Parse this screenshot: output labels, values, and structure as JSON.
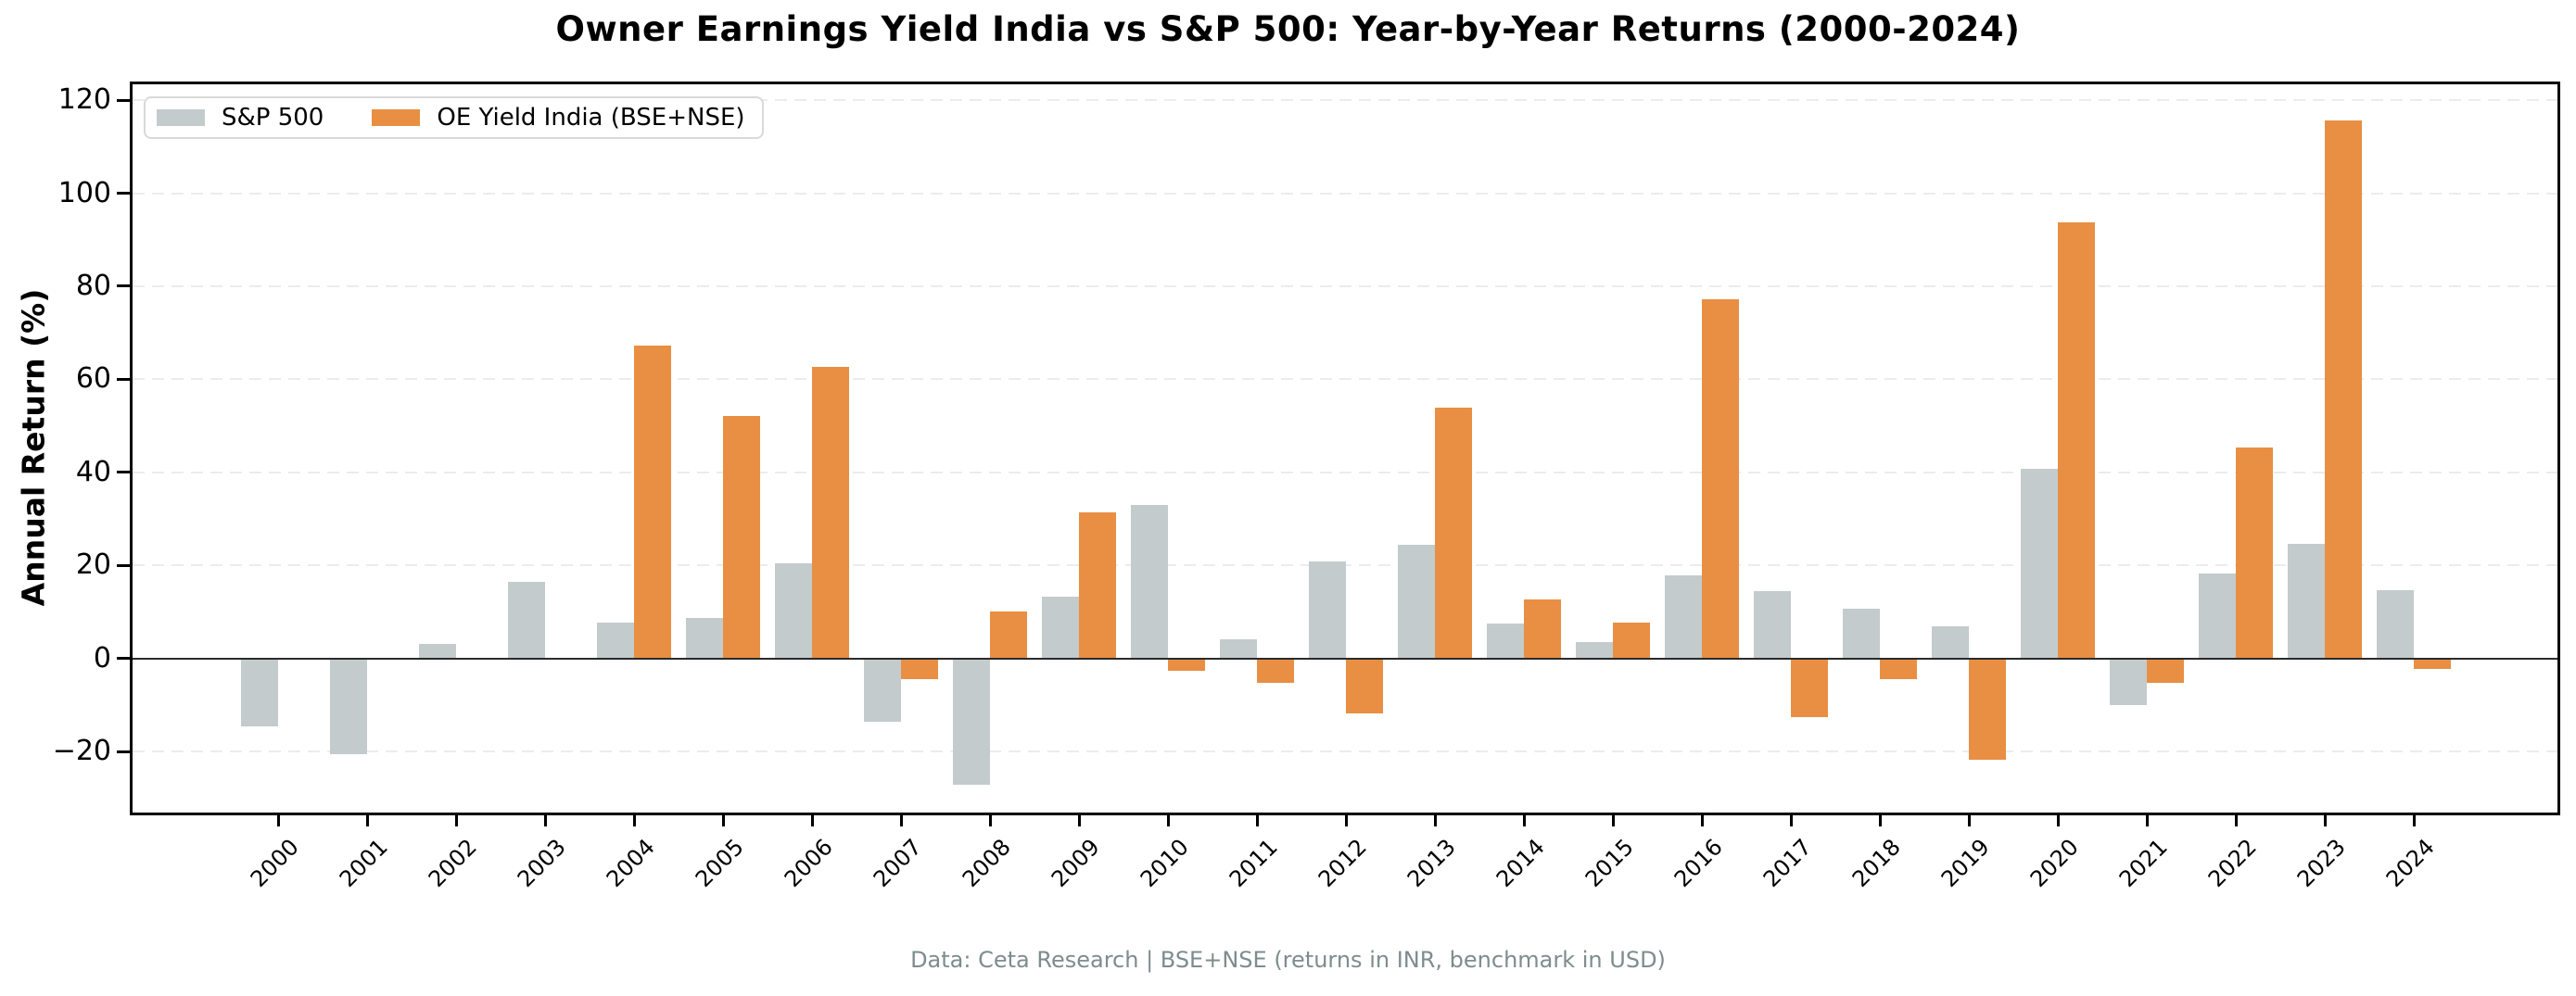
{
  "title": "Owner Earnings Yield India vs S&P 500: Year-by-Year Returns (2000-2024)",
  "y_axis_label": "Annual Return (%)",
  "footer": "Data: Ceta Research | BSE+NSE (returns in INR, benchmark in USD)",
  "colors": {
    "sp500_bar": "#c3cbcc",
    "india_bar": "#e88f43",
    "gridline": "#ececec",
    "zero_line": "#2b2b2b",
    "spine": "#000000",
    "footer_text": "#7e8c8d"
  },
  "legend": {
    "items": [
      {
        "key": "sp500",
        "label": "S&P 500",
        "color": "#c3cbcc"
      },
      {
        "key": "india",
        "label": "OE Yield India (BSE+NSE)",
        "color": "#e88f43"
      }
    ]
  },
  "chart_data": {
    "type": "bar",
    "title": "Owner Earnings Yield India vs S&P 500: Year-by-Year Returns (2000-2024)",
    "xlabel": "",
    "ylabel": "Annual Return (%)",
    "categories": [
      "2000",
      "2001",
      "2002",
      "2003",
      "2004",
      "2005",
      "2006",
      "2007",
      "2008",
      "2009",
      "2010",
      "2011",
      "2012",
      "2013",
      "2014",
      "2015",
      "2016",
      "2017",
      "2018",
      "2019",
      "2020",
      "2021",
      "2022",
      "2023",
      "2024"
    ],
    "series": [
      {
        "key": "sp500",
        "name": "S&P 500",
        "color": "#c3cbcc",
        "values": [
          -14.6,
          -20.6,
          3.1,
          16.4,
          7.8,
          8.8,
          20.5,
          -13.5,
          -27.2,
          13.3,
          33.1,
          4.1,
          20.8,
          24.5,
          7.5,
          3.6,
          17.9,
          14.5,
          10.7,
          7.0,
          40.7,
          -10.1,
          18.2,
          24.6,
          14.7
        ]
      },
      {
        "key": "india",
        "name": "OE Yield India (BSE+NSE)",
        "color": "#e88f43",
        "values": [
          null,
          null,
          null,
          null,
          67.2,
          52.2,
          62.6,
          -4.5,
          10.1,
          31.4,
          -2.7,
          -5.3,
          -11.8,
          53.9,
          12.7,
          7.8,
          77.2,
          -12.5,
          -4.5,
          -21.7,
          93.8,
          -5.2,
          45.4,
          115.7,
          -2.2
        ]
      }
    ],
    "ylim": [
      -33.1,
      123.4
    ],
    "yticks": [
      -20,
      0,
      20,
      40,
      60,
      80,
      100,
      120
    ],
    "grid": "horizontal-dashed",
    "zero_line": true,
    "legend_position": "upper-left"
  }
}
